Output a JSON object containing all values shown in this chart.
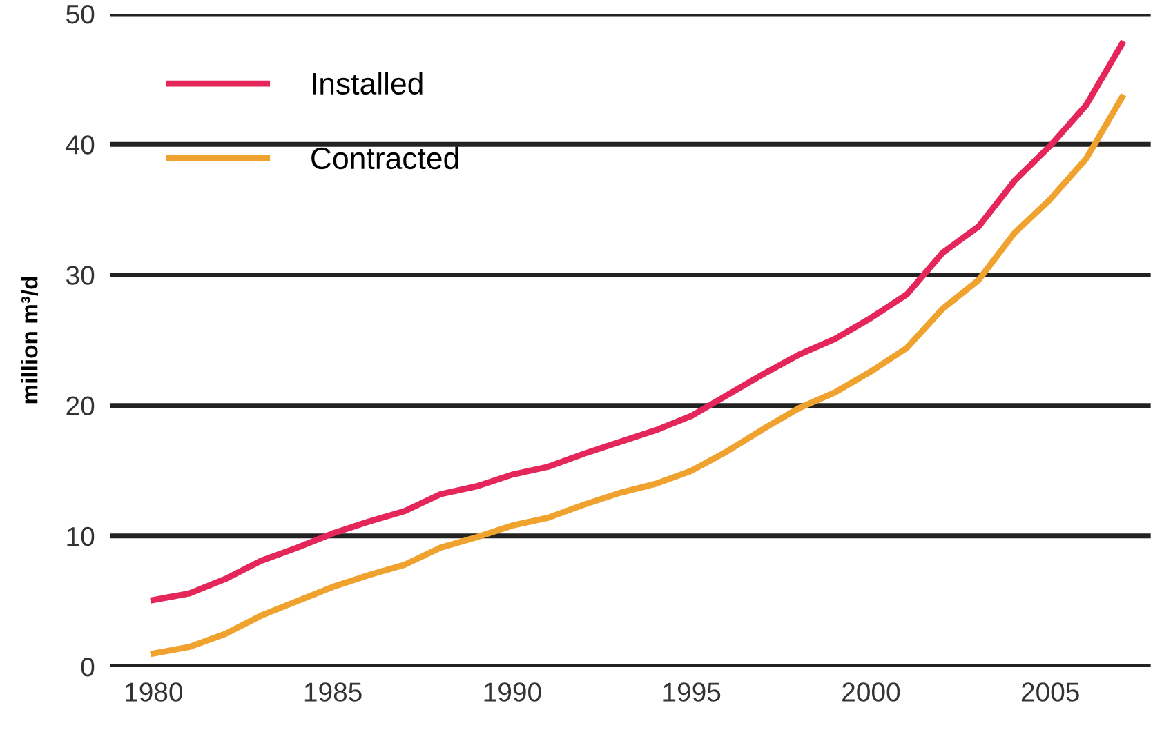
{
  "chart_data": {
    "type": "line",
    "ylabel": "million m³/d",
    "x": [
      1980,
      1981,
      1982,
      1983,
      1984,
      1985,
      1986,
      1987,
      1988,
      1989,
      1990,
      1991,
      1992,
      1993,
      1994,
      1995,
      1996,
      1997,
      1998,
      1999,
      2000,
      2001,
      2002,
      2003,
      2004,
      2005,
      2006,
      2007
    ],
    "series": [
      {
        "name": "Installed",
        "color": "#e5265a",
        "values": [
          5.1,
          5.6,
          6.7,
          8.1,
          9.1,
          10.2,
          11.1,
          11.9,
          13.2,
          13.8,
          14.7,
          15.3,
          16.3,
          17.2,
          18.1,
          19.2,
          20.8,
          22.4,
          23.9,
          25.1,
          26.7,
          28.5,
          31.7,
          33.7,
          37.2,
          39.9,
          43.0,
          47.7
        ]
      },
      {
        "name": "Contracted",
        "color": "#f0a22e",
        "values": [
          1.0,
          1.5,
          2.5,
          3.9,
          5.0,
          6.1,
          7.0,
          7.8,
          9.1,
          9.9,
          10.8,
          11.4,
          12.4,
          13.3,
          14.0,
          15.0,
          16.5,
          18.2,
          19.8,
          21.0,
          22.6,
          24.4,
          27.4,
          29.6,
          33.2,
          35.8,
          38.9,
          43.6
        ]
      }
    ],
    "xlim": [
      1978.8,
      2007.8
    ],
    "xticks": [
      1980,
      1985,
      1990,
      1995,
      2000,
      2005
    ],
    "ylim": [
      0,
      50
    ],
    "yticks": [
      0,
      10,
      20,
      30,
      40,
      50
    ],
    "grid": "y",
    "legend": "top left",
    "marker": "none",
    "line_style": "solid"
  }
}
